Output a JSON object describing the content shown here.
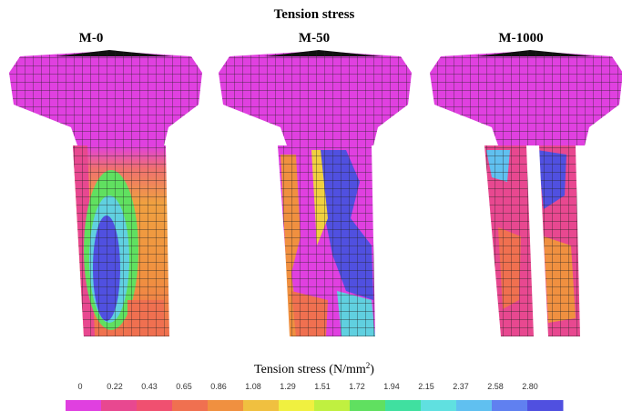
{
  "header": {
    "title": "Tension stress"
  },
  "panels": [
    {
      "label": "M-0"
    },
    {
      "label": "M-50"
    },
    {
      "label": "M-1000"
    }
  ],
  "colorbar": {
    "label": "Tension stress (N/mm",
    "label_sup": "2",
    "label_close": ")",
    "ticks": [
      "0",
      "0.22",
      "0.43",
      "0.65",
      "0.86",
      "1.08",
      "1.29",
      "1.51",
      "1.72",
      "1.94",
      "2.15",
      "2.37",
      "2.58",
      "2.80"
    ]
  }
}
